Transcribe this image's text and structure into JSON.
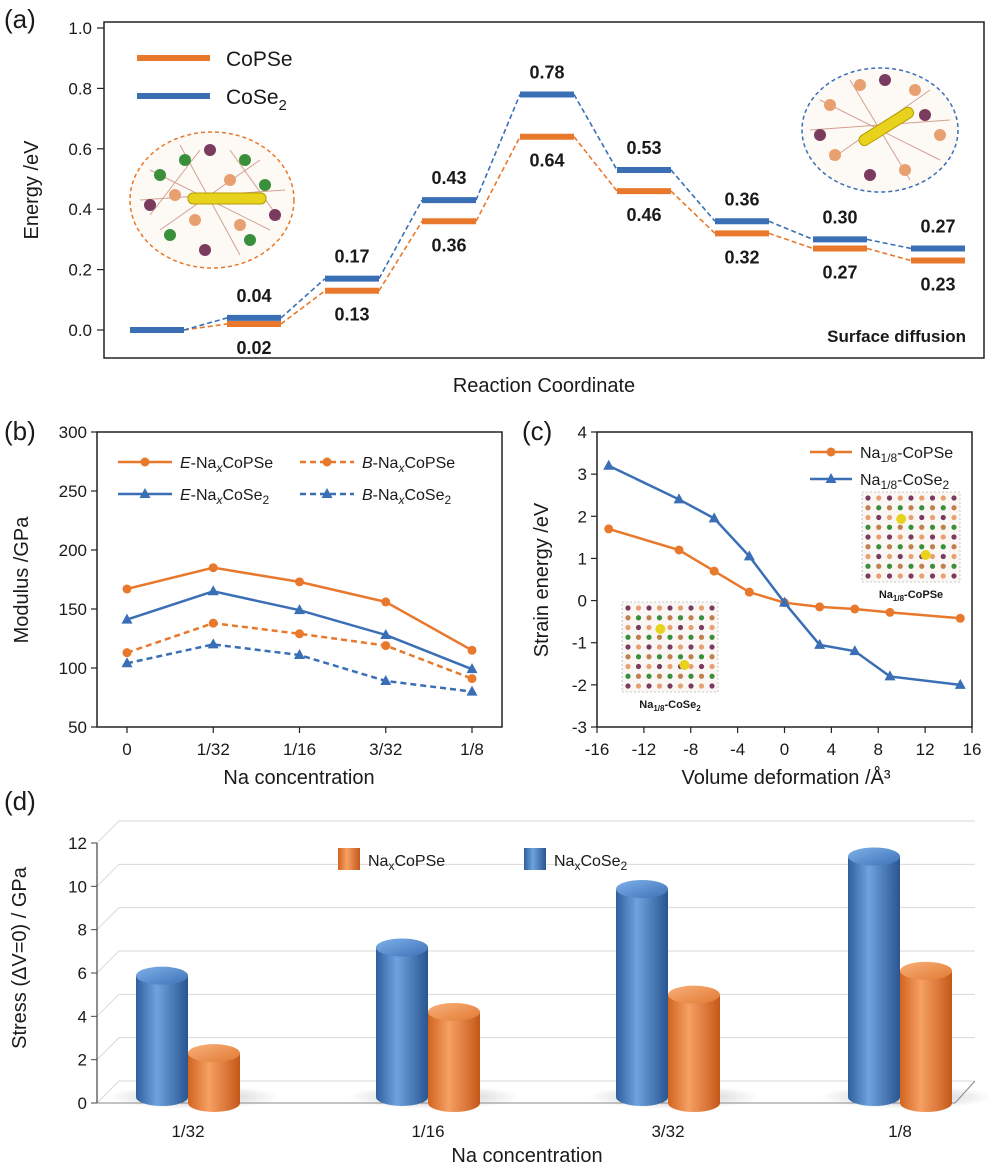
{
  "panels": {
    "a": {
      "letter": "(a)"
    },
    "b": {
      "letter": "(b)"
    },
    "c": {
      "letter": "(c)"
    },
    "d": {
      "letter": "(d)"
    }
  },
  "chart_data": [
    {
      "id": "a",
      "type": "line",
      "title": "",
      "xlabel": "Reaction Coordinate",
      "ylabel": "Energy /eV",
      "ylim": [
        0,
        1.0
      ],
      "yticks": [
        "0.0",
        "0.2",
        "0.4",
        "0.6",
        "0.8",
        "1.0"
      ],
      "annotation": "Surface diffusion",
      "legend_position": "top-left",
      "colors": {
        "CoPSe": "#e8792c",
        "CoSe2": "#3a6fb6"
      },
      "series": [
        {
          "name": "CoPSe",
          "values": [
            0,
            0.02,
            0.13,
            0.36,
            0.64,
            0.46,
            0.32,
            0.27,
            0.23
          ],
          "labels": [
            "",
            "0.02",
            "0.13",
            "0.36",
            "0.64",
            "0.46",
            "0.32",
            "0.27",
            "0.23"
          ]
        },
        {
          "name": "CoSe2",
          "values": [
            0,
            0.04,
            0.17,
            0.43,
            0.78,
            0.53,
            0.36,
            0.3,
            0.27
          ],
          "labels": [
            "",
            "0.04",
            "0.17",
            "0.43",
            "0.78",
            "0.53",
            "0.36",
            "0.30",
            "0.27"
          ]
        }
      ]
    },
    {
      "id": "b",
      "type": "line",
      "title": "",
      "xlabel": "Na concentration",
      "ylabel": "Modulus /GPa",
      "ylim": [
        50,
        300
      ],
      "yticks": [
        "50",
        "100",
        "150",
        "200",
        "250",
        "300"
      ],
      "categories": [
        "0",
        "1/32",
        "1/16",
        "3/32",
        "1/8"
      ],
      "legend_position": "top",
      "series": [
        {
          "name": "E-NaxCoPSe",
          "prefix": "E",
          "values": [
            167,
            185,
            173,
            156,
            115
          ],
          "color": "#e8792c",
          "dash": false,
          "marker": "circle"
        },
        {
          "name": "B-NaxCoPSe",
          "prefix": "B",
          "values": [
            113,
            138,
            129,
            119,
            91
          ],
          "color": "#e8792c",
          "dash": true,
          "marker": "circle"
        },
        {
          "name": "E-NaxCoSe2",
          "prefix": "E",
          "values": [
            141,
            165,
            149,
            128,
            99
          ],
          "color": "#3a6fb6",
          "dash": false,
          "marker": "triangle"
        },
        {
          "name": "B-NaxCoSe2",
          "prefix": "B",
          "values": [
            104,
            120,
            111,
            89,
            80
          ],
          "color": "#3a6fb6",
          "dash": true,
          "marker": "triangle"
        }
      ]
    },
    {
      "id": "c",
      "type": "line",
      "title": "",
      "xlabel": "Volume deformation /Å³",
      "ylabel": "Strain energy /eV",
      "xlim": [
        -16,
        16
      ],
      "ylim": [
        -3,
        4
      ],
      "xticks": [
        "-16",
        "-12",
        "-8",
        "-4",
        "0",
        "4",
        "8",
        "12",
        "16"
      ],
      "yticks": [
        "-3",
        "-2",
        "-1",
        "0",
        "1",
        "2",
        "3",
        "4"
      ],
      "legend_position": "top-right",
      "inset_labels": [
        "Na1/8-CoPSe",
        "Na1/8-CoSe2"
      ],
      "series": [
        {
          "name": "Na1/8-CoPSe",
          "color": "#e8792c",
          "marker": "circle",
          "x": [
            -15,
            -9,
            -6,
            -3,
            0,
            3,
            6,
            9,
            15
          ],
          "y": [
            1.7,
            1.2,
            0.7,
            0.2,
            -0.05,
            -0.15,
            -0.2,
            -0.28,
            -0.42
          ]
        },
        {
          "name": "Na1/8-CoSe2",
          "color": "#3a6fb6",
          "marker": "triangle",
          "x": [
            -15,
            -9,
            -6,
            -3,
            0,
            3,
            6,
            9,
            15
          ],
          "y": [
            3.2,
            2.4,
            1.95,
            1.05,
            -0.05,
            -1.05,
            -1.2,
            -1.8,
            -2.0
          ]
        }
      ]
    },
    {
      "id": "d",
      "type": "bar",
      "title": "",
      "xlabel": "Na concentration",
      "ylabel": "Stress (ΔV=0) / GPa",
      "ylim": [
        0,
        12
      ],
      "yticks": [
        "0",
        "2",
        "4",
        "6",
        "8",
        "10",
        "12"
      ],
      "categories": [
        "1/32",
        "1/16",
        "3/32",
        "1/8"
      ],
      "legend_position": "top",
      "series": [
        {
          "name": "NaxCoPSe",
          "values": [
            2.3,
            4.2,
            5.0,
            6.1
          ],
          "color": "#e8792c"
        },
        {
          "name": "NaxCoSe2",
          "values": [
            5.6,
            6.9,
            9.6,
            11.1
          ],
          "color": "#3a6fb6"
        }
      ]
    }
  ]
}
